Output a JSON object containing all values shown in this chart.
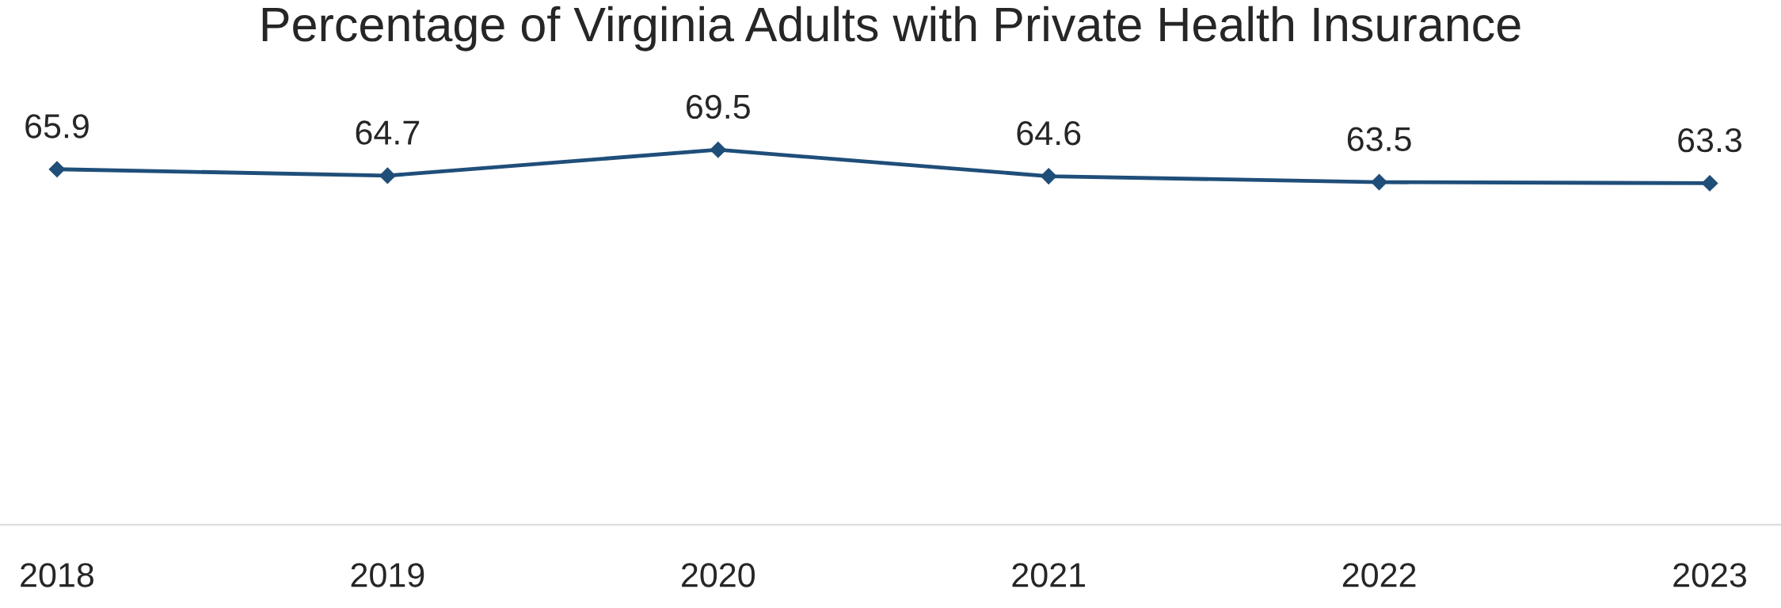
{
  "chart_data": {
    "type": "line",
    "title": "Percentage of Virginia Adults with Private Health Insurance",
    "categories": [
      "2018",
      "2019",
      "2020",
      "2021",
      "2022",
      "2023"
    ],
    "series": [
      {
        "color": "#1f4e79",
        "values": [
          65.9,
          64.7,
          69.5,
          64.6,
          63.5,
          63.3
        ]
      }
    ],
    "tick_labels": "x",
    "data_labels": true,
    "marker": "diamond",
    "line_style": "solid",
    "grid": false,
    "legend": false
  }
}
